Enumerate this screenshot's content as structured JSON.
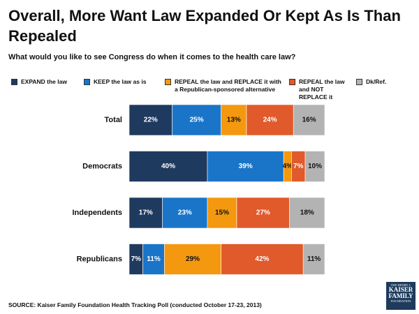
{
  "chart_data": {
    "type": "stacked-barh",
    "title": "Overall, More Want Law Expanded Or Kept As Is Than Repealed",
    "subtitle": "What would you like to see Congress do when it comes to the health care law?",
    "categories": [
      "Total",
      "Democrats",
      "Independents",
      "Republicans"
    ],
    "xlim": [
      0,
      100
    ],
    "series": [
      {
        "name": "EXPAND the law",
        "color": "#1f3a5f",
        "label_color": "#ffffff",
        "values": [
          22,
          40,
          17,
          7
        ],
        "value_labels": [
          "22%",
          "40%",
          "17%",
          "7%"
        ]
      },
      {
        "name": "KEEP the law as is",
        "color": "#1a75c9",
        "label_color": "#ffffff",
        "values": [
          25,
          39,
          23,
          11
        ],
        "value_labels": [
          "25%",
          "39%",
          "23%",
          "11%"
        ]
      },
      {
        "name": "REPEAL the law and REPLACE it with a Republican-sponsored alternative",
        "color": "#f4980f",
        "label_color": "#111111",
        "values": [
          13,
          4,
          15,
          29
        ],
        "value_labels": [
          "13%",
          "4%",
          "15%",
          "29%"
        ]
      },
      {
        "name": "REPEAL the law and NOT REPLACE it",
        "color": "#e05a2b",
        "label_color": "#ffffff",
        "values": [
          24,
          7,
          27,
          42
        ],
        "value_labels": [
          "24%",
          "7%",
          "27%",
          "42%"
        ]
      },
      {
        "name": "Dk/Ref.",
        "color": "#b3b3b3",
        "label_color": "#111111",
        "values": [
          16,
          10,
          18,
          11
        ],
        "value_labels": [
          "16%",
          "10%",
          "18%",
          "11%"
        ]
      }
    ],
    "source": "SOURCE: Kaiser Family Foundation Health Tracking Poll (conducted October 17-23, 2013)",
    "logo": {
      "top": "THE HENRY J.",
      "main": "KAISER FAMILY",
      "bottom": "FOUNDATION"
    }
  }
}
